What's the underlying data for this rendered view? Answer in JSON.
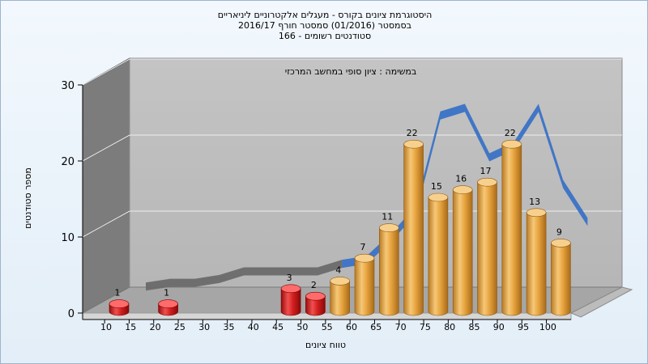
{
  "chart_data": {
    "type": "bar",
    "title": "היסטוגרמת ציונים בקורס - מעגלים אלקטרוניים ליניאריים",
    "subtitle_lines": [
      "בסמסטר (01/2016) סמסטר חורף 2016/17",
      "סטודנטים רשומים - 166"
    ],
    "annotation": "במשימה : ציון סופי במחשב המרכזי",
    "xlabel": "טווח ציונים",
    "ylabel": "מספר סטודנטים",
    "categories": [
      "10",
      "15",
      "20",
      "25",
      "30",
      "35",
      "40",
      "45",
      "50",
      "55",
      "60",
      "65",
      "70",
      "75",
      "80",
      "85",
      "90",
      "95",
      "100"
    ],
    "values": [
      1,
      0,
      1,
      0,
      0,
      0,
      0,
      3,
      2,
      4,
      7,
      11,
      22,
      15,
      16,
      17,
      22,
      13,
      9
    ],
    "value_labels_shown": [
      true,
      false,
      true,
      false,
      false,
      false,
      false,
      true,
      true,
      true,
      true,
      true,
      true,
      true,
      true,
      true,
      true,
      true,
      true
    ],
    "bar_colors": {
      "failing": "#d42020",
      "passing": "#e8a540"
    },
    "failing_below": 55,
    "trend_series": [
      0.5,
      1,
      1,
      1.5,
      2.5,
      2.5,
      2.5,
      2.5,
      3.5,
      4,
      7,
      10.5,
      23,
      24,
      17.5,
      19,
      24,
      14,
      9
    ],
    "trend_colors": {
      "low": "#6a6a6a",
      "high": "#3a72c6"
    },
    "ylim": [
      0,
      30
    ],
    "yticks": [
      0,
      10,
      20,
      30
    ],
    "grid": true
  }
}
